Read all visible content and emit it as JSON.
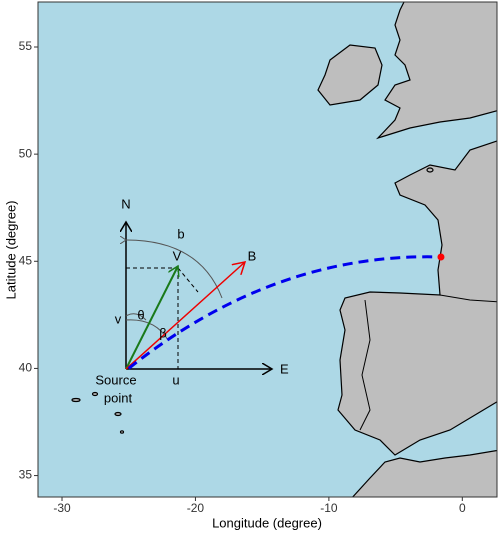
{
  "chart_data": {
    "type": "map",
    "xlabel": "Longitude (degree)",
    "ylabel": "Latitude (degree)",
    "xlim": [
      -31.8,
      2.6
    ],
    "ylim": [
      34.0,
      57.1
    ],
    "xticks": [
      -30,
      -20,
      -10,
      0
    ],
    "yticks": [
      35,
      40,
      45,
      50,
      55
    ],
    "source": [
      -25,
      40
    ],
    "destination": [
      -1.6,
      45.2
    ],
    "annotations": {
      "north": "N",
      "east": "E",
      "b": "b",
      "V": "V",
      "B": "B",
      "v": "v",
      "theta": "θ",
      "beta": "β",
      "u": "u",
      "source_1": "Source",
      "source_2": "point"
    }
  }
}
